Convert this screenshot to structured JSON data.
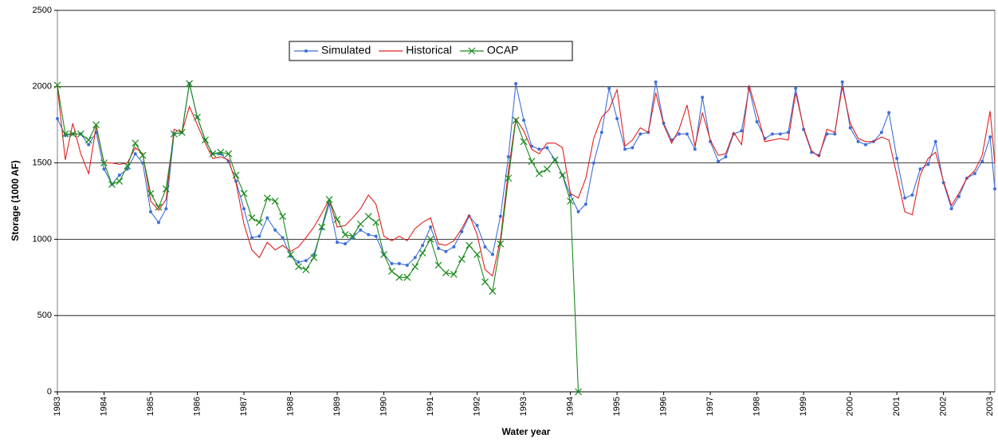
{
  "chart_data": {
    "type": "line",
    "x_label": "Water year",
    "y_label": "Storage (1000 AF)",
    "x": [
      1983,
      1983.17,
      1983.33,
      1983.5,
      1983.67,
      1983.83,
      1984,
      1984.17,
      1984.33,
      1984.5,
      1984.67,
      1984.83,
      1985,
      1985.17,
      1985.33,
      1985.5,
      1985.67,
      1985.83,
      1986,
      1986.17,
      1986.33,
      1986.5,
      1986.67,
      1986.83,
      1987,
      1987.17,
      1987.33,
      1987.5,
      1987.67,
      1987.83,
      1988,
      1988.17,
      1988.33,
      1988.5,
      1988.67,
      1988.83,
      1989,
      1989.17,
      1989.33,
      1989.5,
      1989.67,
      1989.83,
      1990,
      1990.17,
      1990.33,
      1990.5,
      1990.67,
      1990.83,
      1991,
      1991.17,
      1991.33,
      1991.5,
      1991.67,
      1991.83,
      1992,
      1992.17,
      1992.33,
      1992.5,
      1992.67,
      1992.83,
      1993,
      1993.17,
      1993.33,
      1993.5,
      1993.67,
      1993.83,
      1994,
      1994.17,
      1994.33,
      1994.5,
      1994.67,
      1994.83,
      1995,
      1995.17,
      1995.33,
      1995.5,
      1995.67,
      1995.83,
      1996,
      1996.17,
      1996.33,
      1996.5,
      1996.67,
      1996.83,
      1997,
      1997.17,
      1997.33,
      1997.5,
      1997.67,
      1997.83,
      1998,
      1998.17,
      1998.33,
      1998.5,
      1998.67,
      1998.83,
      1999,
      1999.17,
      1999.33,
      1999.5,
      1999.67,
      1999.83,
      2000,
      2000.17,
      2000.33,
      2000.5,
      2000.67,
      2000.83,
      2001,
      2001.17,
      2001.33,
      2001.5,
      2001.67,
      2001.83,
      2002,
      2002.17,
      2002.33,
      2002.5,
      2002.67,
      2002.83,
      2003,
      2003.1
    ],
    "series": [
      {
        "name": "Simulated",
        "color": "#3f6fd8",
        "marker": "circle",
        "values": [
          1790,
          1680,
          1690,
          1690,
          1620,
          1700,
          1460,
          1360,
          1420,
          1460,
          1560,
          1500,
          1180,
          1110,
          1200,
          1690,
          1700,
          2020,
          1800,
          1650,
          1560,
          1560,
          1510,
          1380,
          1200,
          1010,
          1020,
          1140,
          1060,
          1010,
          890,
          850,
          860,
          900,
          1070,
          1230,
          980,
          970,
          1010,
          1060,
          1030,
          1020,
          900,
          840,
          840,
          830,
          880,
          960,
          1080,
          940,
          920,
          950,
          1050,
          1150,
          1090,
          950,
          900,
          1150,
          1540,
          2020,
          1780,
          1610,
          1590,
          1600,
          1520,
          1420,
          1290,
          1180,
          1230,
          1500,
          1700,
          1990,
          1790,
          1590,
          1600,
          1690,
          1700,
          2030,
          1760,
          1650,
          1690,
          1690,
          1590,
          1930,
          1640,
          1510,
          1540,
          1690,
          1710,
          1990,
          1770,
          1660,
          1690,
          1690,
          1700,
          1990,
          1720,
          1570,
          1550,
          1690,
          1690,
          2030,
          1730,
          1640,
          1620,
          1640,
          1700,
          1830,
          1530,
          1270,
          1290,
          1460,
          1490,
          1640,
          1370,
          1200,
          1280,
          1400,
          1430,
          1510,
          1670,
          1330
        ]
      },
      {
        "name": "Historical",
        "color": "#e02020",
        "marker": "none",
        "values": [
          2000,
          1520,
          1760,
          1560,
          1430,
          1740,
          1500,
          1500,
          1490,
          1500,
          1600,
          1560,
          1250,
          1190,
          1260,
          1720,
          1700,
          1870,
          1750,
          1630,
          1530,
          1540,
          1520,
          1370,
          1100,
          930,
          880,
          980,
          930,
          960,
          920,
          950,
          1010,
          1080,
          1170,
          1260,
          1080,
          1090,
          1140,
          1200,
          1290,
          1230,
          1020,
          990,
          1020,
          990,
          1070,
          1110,
          1140,
          970,
          960,
          990,
          1070,
          1160,
          1030,
          800,
          760,
          1000,
          1450,
          1790,
          1710,
          1590,
          1560,
          1630,
          1630,
          1600,
          1300,
          1270,
          1400,
          1660,
          1800,
          1850,
          1980,
          1610,
          1650,
          1730,
          1700,
          1960,
          1750,
          1630,
          1720,
          1880,
          1610,
          1830,
          1650,
          1550,
          1560,
          1700,
          1620,
          2010,
          1830,
          1640,
          1650,
          1660,
          1650,
          1960,
          1730,
          1580,
          1540,
          1720,
          1700,
          2000,
          1760,
          1660,
          1640,
          1640,
          1670,
          1650,
          1420,
          1180,
          1160,
          1420,
          1530,
          1570,
          1380,
          1220,
          1300,
          1400,
          1450,
          1550,
          1840,
          1500
        ]
      },
      {
        "name": "OCAP",
        "color": "#1a8a1a",
        "marker": "cross",
        "values": [
          2010,
          1690,
          1690,
          1690,
          1650,
          1750,
          1500,
          1360,
          1380,
          1480,
          1630,
          1550,
          1300,
          1210,
          1330,
          1690,
          1700,
          2020,
          1800,
          1650,
          1560,
          1570,
          1560,
          1420,
          1300,
          1140,
          1110,
          1270,
          1250,
          1150,
          900,
          820,
          800,
          880,
          1080,
          1260,
          1130,
          1030,
          1020,
          1100,
          1150,
          1110,
          900,
          790,
          750,
          750,
          820,
          910,
          1000,
          830,
          780,
          770,
          870,
          960,
          900,
          720,
          660,
          970,
          1400,
          1780,
          1640,
          1510,
          1430,
          1460,
          1520,
          1420,
          1250,
          0,
          null,
          null,
          null,
          null,
          null,
          null,
          null,
          null,
          null,
          null,
          null,
          null,
          null,
          null,
          null,
          null,
          null,
          null,
          null,
          null,
          null,
          null,
          null,
          null,
          null,
          null,
          null,
          null,
          null,
          null,
          null,
          null,
          null,
          null,
          null,
          null,
          null,
          null,
          null,
          null,
          null,
          null,
          null,
          null,
          null,
          null,
          null,
          null,
          null,
          null,
          null,
          null,
          null,
          null
        ]
      }
    ],
    "xlim": [
      1983,
      2003.1
    ],
    "xticks": [
      1983,
      1984,
      1985,
      1986,
      1987,
      1988,
      1989,
      1990,
      1991,
      1992,
      1993,
      1994,
      1995,
      1996,
      1997,
      1998,
      1999,
      2000,
      2001,
      2002,
      2003
    ],
    "ylim": [
      0,
      2500
    ],
    "yticks": [
      0,
      500,
      1000,
      1500,
      2000,
      2500
    ],
    "grid": true
  }
}
